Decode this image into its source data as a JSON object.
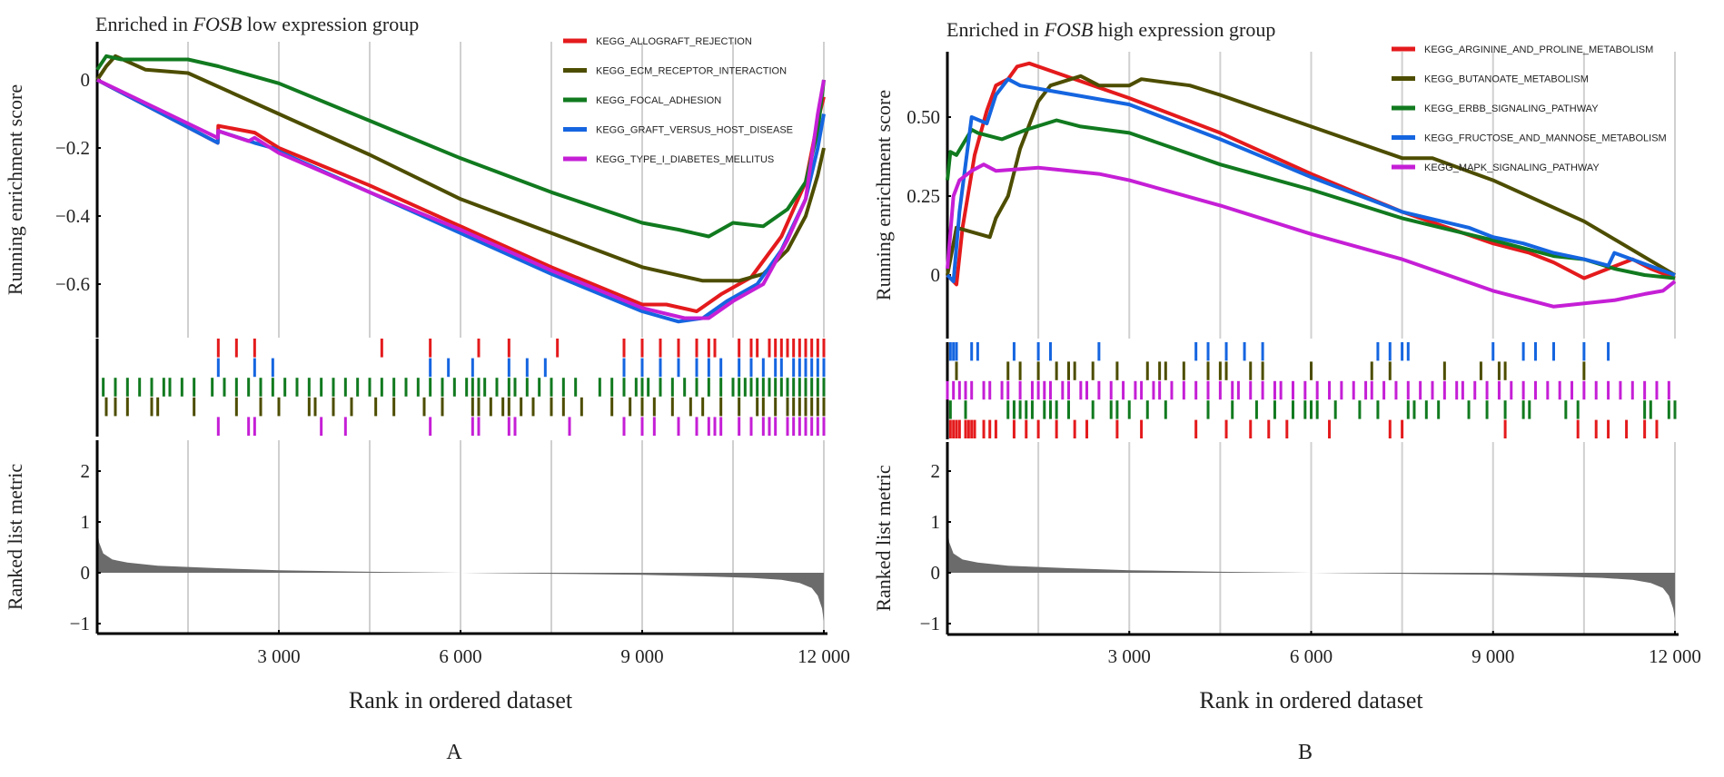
{
  "chart_data": [
    {
      "type": "line",
      "panel_label": "A",
      "title_prefix": "Enriched in ",
      "title_gene": "FOSB",
      "title_suffix": " low expression group",
      "xlabel": "Rank in ordered dataset",
      "ylabel_es": "Running enrichment score",
      "ylabel_rank": "Ranked list metric",
      "xlim": [
        0,
        12000
      ],
      "x_ticks": [
        3000,
        6000,
        9000,
        12000
      ],
      "x_tick_labels": [
        "3 000",
        "6 000",
        "9 000",
        "12 000"
      ],
      "es_ylim": [
        -0.76,
        0.1
      ],
      "es_ticks": [
        0,
        -0.2,
        -0.4,
        -0.6
      ],
      "es_tick_labels": [
        "0",
        "−0.2",
        "−0.4",
        "−0.6"
      ],
      "rank_ylim": [
        -1.2,
        2.5
      ],
      "rank_ticks": [
        2,
        1,
        0,
        -1
      ],
      "rank_tick_labels": [
        "2",
        "1",
        "0",
        "−1"
      ],
      "legend_position": "top-right",
      "grid": "vertical",
      "series": [
        {
          "name": "KEGG_ALLOGRAFT_REJECTION",
          "color": "#e41a1c",
          "x": [
            0,
            1990,
            2000,
            2300,
            2600,
            3000,
            4500,
            6000,
            7500,
            9000,
            9400,
            9900,
            10300,
            10800,
            11300,
            11700,
            11900,
            12000
          ],
          "y": [
            0,
            -0.185,
            -0.135,
            -0.145,
            -0.155,
            -0.2,
            -0.31,
            -0.43,
            -0.55,
            -0.66,
            -0.66,
            -0.68,
            -0.63,
            -0.58,
            -0.46,
            -0.3,
            -0.12,
            -0.05
          ],
          "hits": [
            2000,
            2300,
            2600,
            4700,
            5500,
            6300,
            6800,
            7600,
            8700,
            9000,
            9300,
            9600,
            9900,
            10100,
            10200,
            10600,
            10800,
            10900,
            11100,
            11200,
            11300,
            11400,
            11500,
            11600,
            11700,
            11800,
            11900,
            12000
          ]
        },
        {
          "name": "KEGG_ECM_RECEPTOR_INTERACTION",
          "color": "#4d4d00",
          "x": [
            0,
            150,
            300,
            800,
            1500,
            3000,
            4500,
            6000,
            7500,
            9000,
            10000,
            10600,
            11000,
            11400,
            11700,
            11900,
            12000
          ],
          "y": [
            0,
            0.04,
            0.07,
            0.03,
            0.02,
            -0.1,
            -0.22,
            -0.35,
            -0.45,
            -0.55,
            -0.59,
            -0.59,
            -0.57,
            -0.5,
            -0.4,
            -0.28,
            -0.2
          ],
          "hits": [
            150,
            300,
            500,
            900,
            1000,
            1600,
            2300,
            2700,
            3000,
            3500,
            3600,
            3900,
            4200,
            4600,
            4900,
            5400,
            5700,
            6200,
            6300,
            6500,
            6700,
            6800,
            7000,
            7200,
            7500,
            7700,
            8000,
            8500,
            8800,
            9000,
            9200,
            9500,
            9800,
            10000,
            10300,
            10600,
            10900,
            11000,
            11200,
            11400,
            11500,
            11600,
            11700,
            11800,
            11900,
            12000
          ]
        },
        {
          "name": "KEGG_FOCAL_ADHESION",
          "color": "#117a1f",
          "x": [
            0,
            150,
            400,
            1000,
            1500,
            2000,
            3000,
            4500,
            6000,
            7500,
            9000,
            9600,
            10100,
            10500,
            11000,
            11400,
            11700,
            11900,
            12000
          ],
          "y": [
            0.03,
            0.07,
            0.06,
            0.06,
            0.06,
            0.04,
            -0.01,
            -0.12,
            -0.23,
            -0.33,
            -0.42,
            -0.44,
            -0.46,
            -0.42,
            -0.43,
            -0.38,
            -0.3,
            -0.15,
            0.0
          ],
          "hits": [
            100,
            300,
            500,
            700,
            900,
            1100,
            1200,
            1400,
            1600,
            1900,
            2100,
            2300,
            2500,
            2700,
            2900,
            3100,
            3300,
            3500,
            3700,
            3900,
            4100,
            4300,
            4500,
            4700,
            4900,
            5100,
            5300,
            5500,
            5700,
            5900,
            6100,
            6200,
            6300,
            6400,
            6600,
            6800,
            6900,
            7100,
            7300,
            7500,
            7700,
            7900,
            8300,
            8500,
            8700,
            8900,
            9000,
            9100,
            9300,
            9500,
            9700,
            9900,
            10100,
            10300,
            10500,
            10600,
            10700,
            10800,
            10900,
            11000,
            11100,
            11200,
            11300,
            11400,
            11500,
            11600,
            11700,
            11800,
            11900,
            12000
          ]
        },
        {
          "name": "KEGG_GRAFT_VERSUS_HOST_DISEASE",
          "color": "#1565e0",
          "x": [
            0,
            1990,
            2000,
            2600,
            2900,
            3000,
            4500,
            6000,
            7500,
            9000,
            9600,
            10000,
            10400,
            10900,
            11300,
            11700,
            11900,
            12000
          ],
          "y": [
            0,
            -0.185,
            -0.15,
            -0.185,
            -0.2,
            -0.21,
            -0.33,
            -0.45,
            -0.57,
            -0.68,
            -0.71,
            -0.7,
            -0.65,
            -0.6,
            -0.5,
            -0.35,
            -0.2,
            -0.1
          ],
          "hits": [
            2000,
            2600,
            2900,
            5500,
            5800,
            6200,
            6800,
            7100,
            7400,
            8700,
            9000,
            9300,
            9600,
            9900,
            10100,
            10300,
            10600,
            10800,
            11000,
            11200,
            11300,
            11500,
            11600,
            11700,
            11800,
            11900,
            12000
          ]
        },
        {
          "name": "KEGG_TYPE_I_DIABETES_MELLITUS",
          "color": "#c51fd6",
          "x": [
            0,
            1990,
            2000,
            2500,
            2600,
            3000,
            4500,
            6000,
            7500,
            9000,
            9700,
            10100,
            10500,
            11000,
            11400,
            11700,
            11900,
            12000
          ],
          "y": [
            0,
            -0.17,
            -0.15,
            -0.18,
            -0.17,
            -0.215,
            -0.33,
            -0.44,
            -0.56,
            -0.67,
            -0.7,
            -0.7,
            -0.65,
            -0.6,
            -0.47,
            -0.35,
            -0.1,
            0.0
          ],
          "hits": [
            2000,
            2500,
            2600,
            3700,
            4100,
            5500,
            6200,
            6300,
            6800,
            6900,
            7800,
            8700,
            9000,
            9200,
            9600,
            9900,
            10100,
            10200,
            10300,
            10600,
            10800,
            11000,
            11100,
            11200,
            11400,
            11500,
            11600,
            11700,
            11800,
            11900,
            12000
          ]
        }
      ],
      "ranked_metric": {
        "x": [
          0,
          30,
          100,
          250,
          500,
          1000,
          2000,
          3000,
          4500,
          6000,
          7500,
          9000,
          10000,
          10800,
          11300,
          11600,
          11800,
          11900,
          11970,
          12000
        ],
        "y": [
          0.95,
          0.6,
          0.38,
          0.26,
          0.2,
          0.14,
          0.09,
          0.05,
          0.02,
          0.0,
          -0.02,
          -0.04,
          -0.07,
          -0.1,
          -0.14,
          -0.2,
          -0.3,
          -0.45,
          -0.7,
          -0.95
        ],
        "color": "#6b6b6b"
      }
    },
    {
      "type": "line",
      "panel_label": "B",
      "title_prefix": "Enriched in ",
      "title_gene": "FOSB",
      "title_suffix": " high expression group",
      "xlabel": "Rank in ordered dataset",
      "ylabel_es": "Running enrichment score",
      "ylabel_rank": "Ranked list metric",
      "xlim": [
        0,
        12000
      ],
      "x_ticks": [
        3000,
        6000,
        9000,
        12000
      ],
      "x_tick_labels": [
        "3 000",
        "6 000",
        "9 000",
        "12 000"
      ],
      "es_ylim": [
        -0.2,
        0.7
      ],
      "es_ticks": [
        0.5,
        0.25,
        0
      ],
      "es_tick_labels": [
        "0.50",
        "0.25",
        "0"
      ],
      "rank_ylim": [
        -1.2,
        2.5
      ],
      "rank_ticks": [
        2,
        1,
        0,
        -1
      ],
      "rank_tick_labels": [
        "2",
        "1",
        "0",
        "−1"
      ],
      "legend_position": "top-right",
      "grid": "vertical",
      "series": [
        {
          "name": "KEGG_ARGININE_AND_PROLINE_METABOLISM",
          "color": "#e41a1c",
          "x": [
            0,
            150,
            250,
            450,
            650,
            800,
            1000,
            1150,
            1350,
            3000,
            4500,
            6000,
            7500,
            9000,
            9600,
            10000,
            10500,
            10900,
            11300,
            11600,
            12000
          ],
          "y": [
            0,
            -0.03,
            0.15,
            0.38,
            0.52,
            0.6,
            0.62,
            0.66,
            0.67,
            0.56,
            0.45,
            0.32,
            0.2,
            0.1,
            0.07,
            0.04,
            -0.01,
            0.02,
            0.05,
            0.02,
            -0.01
          ],
          "hits": [
            50,
            100,
            150,
            200,
            300,
            350,
            400,
            450,
            600,
            700,
            800,
            1100,
            1300,
            1500,
            1800,
            2100,
            2300,
            2800,
            3200,
            4100,
            4600,
            5000,
            5300,
            5600,
            6300,
            7300,
            7500,
            9200,
            10400,
            10700,
            10900,
            11200,
            11500,
            11700
          ]
        },
        {
          "name": "KEGG_BUTANOATE_METABOLISM",
          "color": "#4d4d00",
          "x": [
            0,
            100,
            150,
            700,
            800,
            1000,
            1200,
            1500,
            1700,
            2200,
            2500,
            3000,
            3200,
            4000,
            4500,
            6000,
            7500,
            8000,
            9000,
            10500,
            12000
          ],
          "y": [
            0,
            0.1,
            0.15,
            0.12,
            0.18,
            0.25,
            0.4,
            0.55,
            0.6,
            0.63,
            0.6,
            0.6,
            0.62,
            0.6,
            0.57,
            0.47,
            0.37,
            0.37,
            0.3,
            0.17,
            0.0
          ],
          "hits": [
            150,
            1000,
            1200,
            1500,
            1800,
            2000,
            2100,
            2400,
            2800,
            3300,
            3500,
            3600,
            3900,
            4300,
            4500,
            4600,
            5000,
            5200,
            6000,
            7000,
            7300,
            8200,
            8800,
            9100,
            9200,
            10500
          ]
        },
        {
          "name": "KEGG_ERBB_SIGNALING_PATHWAY",
          "color": "#117a1f",
          "x": [
            0,
            50,
            150,
            400,
            500,
            900,
            1300,
            1800,
            2200,
            3000,
            4500,
            6000,
            7500,
            9000,
            10000,
            10500,
            11000,
            11500,
            12000
          ],
          "y": [
            0.3,
            0.39,
            0.38,
            0.46,
            0.45,
            0.43,
            0.46,
            0.49,
            0.47,
            0.45,
            0.35,
            0.27,
            0.18,
            0.11,
            0.06,
            0.05,
            0.02,
            0.0,
            -0.01
          ],
          "hits": [
            50,
            300,
            1000,
            1100,
            1200,
            1300,
            1400,
            1600,
            1700,
            1800,
            2000,
            2400,
            2700,
            2800,
            3000,
            3300,
            3600,
            4300,
            4700,
            5100,
            5400,
            5700,
            5900,
            6000,
            6100,
            6400,
            6800,
            7100,
            7600,
            7700,
            7900,
            8100,
            8600,
            8900,
            9200,
            9500,
            9600,
            10200,
            10400,
            11500,
            11600,
            11900,
            12000
          ]
        },
        {
          "name": "KEGG_FRUCTOSE_AND_MANNOSE_METABOLISM",
          "color": "#1565e0",
          "x": [
            0,
            100,
            200,
            400,
            650,
            800,
            1000,
            1200,
            3000,
            4500,
            6000,
            7500,
            8600,
            9000,
            9500,
            10000,
            10500,
            10900,
            11000,
            12000
          ],
          "y": [
            0,
            -0.02,
            0.2,
            0.5,
            0.48,
            0.57,
            0.62,
            0.6,
            0.54,
            0.43,
            0.31,
            0.2,
            0.15,
            0.12,
            0.1,
            0.07,
            0.05,
            0.03,
            0.07,
            0.0
          ],
          "hits": [
            50,
            100,
            150,
            400,
            500,
            1100,
            1500,
            1700,
            2500,
            4100,
            4300,
            4600,
            4900,
            5200,
            7100,
            7300,
            7500,
            7600,
            9000,
            9500,
            9700,
            10000,
            10500,
            10900
          ]
        },
        {
          "name": "KEGG_MAPK_SIGNALING_PATHWAY",
          "color": "#c51fd6",
          "x": [
            0,
            100,
            200,
            400,
            600,
            800,
            1500,
            2500,
            3000,
            4500,
            6000,
            7500,
            9000,
            9600,
            10000,
            10500,
            11000,
            11500,
            11800,
            12000
          ],
          "y": [
            0.02,
            0.25,
            0.3,
            0.33,
            0.35,
            0.33,
            0.34,
            0.32,
            0.3,
            0.22,
            0.13,
            0.05,
            -0.05,
            -0.08,
            -0.1,
            -0.09,
            -0.08,
            -0.06,
            -0.05,
            -0.02
          ],
          "hits": [
            0,
            100,
            200,
            300,
            400,
            600,
            700,
            900,
            1000,
            1200,
            1400,
            1500,
            1600,
            1700,
            1900,
            2000,
            2200,
            2300,
            2500,
            2700,
            2900,
            3100,
            3200,
            3400,
            3500,
            3700,
            3900,
            4100,
            4300,
            4500,
            4700,
            4800,
            5000,
            5200,
            5400,
            5500,
            5700,
            5900,
            6100,
            6300,
            6500,
            6700,
            6900,
            7000,
            7200,
            7400,
            7600,
            7800,
            8000,
            8200,
            8400,
            8500,
            8700,
            8900,
            9100,
            9300,
            9500,
            9700,
            9900,
            10100,
            10300,
            10500,
            10700,
            10900,
            11100,
            11300,
            11500,
            11700,
            11900
          ]
        }
      ],
      "ranked_metric": {
        "x": [
          0,
          30,
          100,
          250,
          500,
          1000,
          2000,
          3000,
          4500,
          6000,
          7500,
          9000,
          10000,
          10800,
          11300,
          11600,
          11800,
          11900,
          11970,
          12000
        ],
        "y": [
          0.95,
          0.6,
          0.38,
          0.26,
          0.2,
          0.14,
          0.09,
          0.05,
          0.02,
          0.0,
          -0.02,
          -0.04,
          -0.07,
          -0.1,
          -0.14,
          -0.2,
          -0.3,
          -0.45,
          -0.7,
          -0.9
        ],
        "color": "#6b6b6b"
      }
    }
  ]
}
